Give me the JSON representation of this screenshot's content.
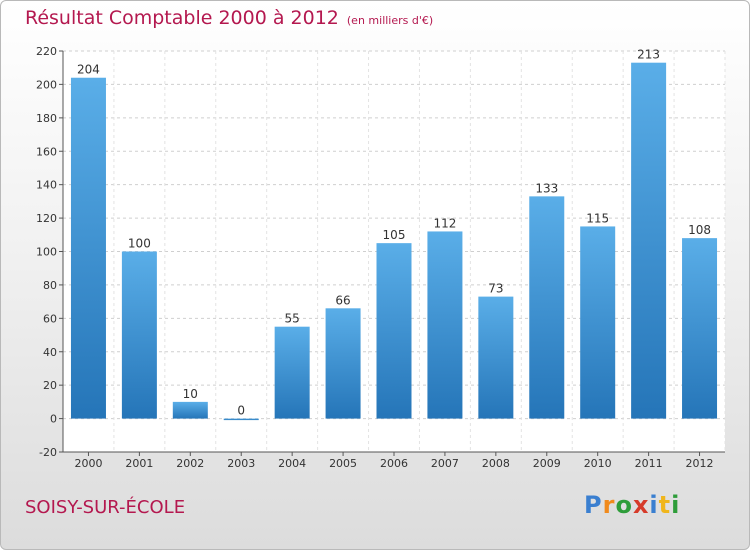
{
  "title": "Résultat Comptable 2000 à 2012",
  "unit": "(en milliers d'€)",
  "place": "SOISY-SUR-ÉCOLE",
  "logo": {
    "letters": [
      "P",
      "r",
      "o",
      "x",
      "i",
      "t",
      "i"
    ],
    "colors": [
      "#3a7fd0",
      "#f08a1c",
      "#2e9d3a",
      "#d63b2a",
      "#3a7fd0",
      "#f0b61c",
      "#2e9d3a"
    ]
  },
  "colors": {
    "title": "#b4184f",
    "bar_top": "#5aaee8",
    "bar_bottom": "#2575b8"
  },
  "chart_data": {
    "type": "bar",
    "categories": [
      "2000",
      "2001",
      "2002",
      "2003",
      "2004",
      "2005",
      "2006",
      "2007",
      "2008",
      "2009",
      "2010",
      "2011",
      "2012"
    ],
    "values": [
      204,
      100,
      10,
      0,
      55,
      66,
      105,
      112,
      73,
      133,
      115,
      213,
      108
    ],
    "ylim": [
      -20,
      220
    ],
    "yticks": [
      -20,
      0,
      20,
      40,
      60,
      80,
      100,
      120,
      140,
      160,
      180,
      200,
      220
    ],
    "grid": true
  }
}
